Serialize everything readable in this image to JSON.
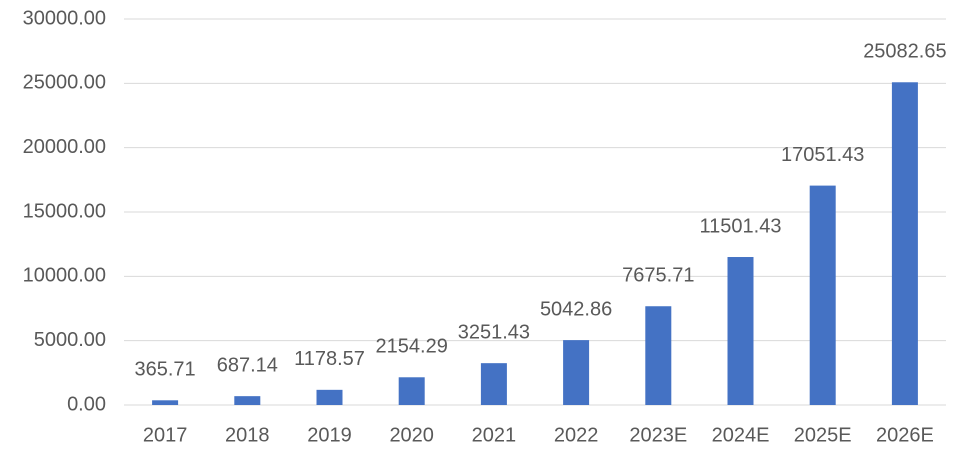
{
  "chart_data": {
    "type": "bar",
    "categories": [
      "2017",
      "2018",
      "2019",
      "2020",
      "2021",
      "2022",
      "2023E",
      "2024E",
      "2025E",
      "2026E"
    ],
    "values": [
      365.71,
      687.14,
      1178.57,
      2154.29,
      3251.43,
      5042.86,
      7675.71,
      11501.43,
      17051.43,
      25082.65
    ],
    "color": "#4472c4",
    "ylim": [
      0,
      30000
    ],
    "yticks": [
      {
        "value": 0,
        "label": "0.00"
      },
      {
        "value": 5000,
        "label": "5000.00"
      },
      {
        "value": 10000,
        "label": "10000.00"
      },
      {
        "value": 15000,
        "label": "15000.00"
      },
      {
        "value": 20000,
        "label": "20000.00"
      },
      {
        "value": 25000,
        "label": "25000.00"
      },
      {
        "value": 30000,
        "label": "30000.00"
      }
    ],
    "grid": true
  }
}
